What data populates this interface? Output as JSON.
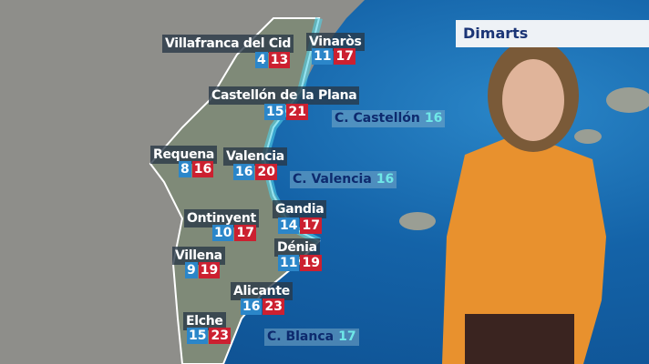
{
  "day": "Dimarts",
  "cities": [
    {
      "name": "Villafranca del Cid",
      "min": "4",
      "max": "13"
    },
    {
      "name": "Vinaròs",
      "min": "11",
      "max": "17"
    },
    {
      "name": "Castellón de la Plana",
      "min": "15",
      "max": "21"
    },
    {
      "name": "Requena",
      "min": "8",
      "max": "16"
    },
    {
      "name": "Valencia",
      "min": "16",
      "max": "20"
    },
    {
      "name": "Ontinyent",
      "min": "10",
      "max": "17"
    },
    {
      "name": "Gandia",
      "min": "14",
      "max": "17"
    },
    {
      "name": "Villena",
      "min": "9",
      "max": "19"
    },
    {
      "name": "Dénia",
      "min": "11",
      "max": "19"
    },
    {
      "name": "Alicante",
      "min": "16",
      "max": "23"
    },
    {
      "name": "Elche",
      "min": "15",
      "max": "23"
    }
  ],
  "sea": [
    {
      "name": "C. Castellón",
      "temp": "16"
    },
    {
      "name": "C. Valencia",
      "temp": "16"
    },
    {
      "name": "C. Blanca",
      "temp": "17"
    }
  ],
  "colors": {
    "min": "#2b86c9",
    "max": "#cc2030",
    "sea": "#1463a8"
  }
}
